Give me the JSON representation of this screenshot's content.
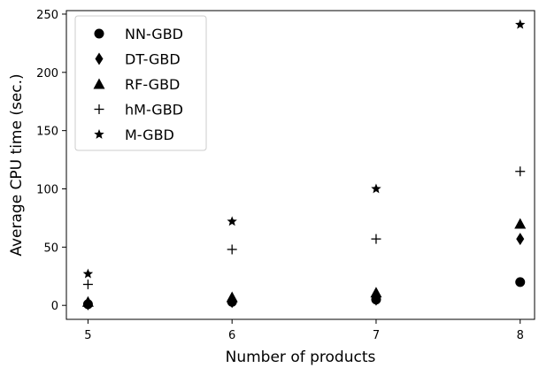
{
  "chart_data": {
    "type": "scatter",
    "xlabel": "Number of products",
    "ylabel": "Average CPU time (sec.)",
    "x": [
      5,
      6,
      7,
      8
    ],
    "xticks": [
      5,
      6,
      7,
      8
    ],
    "yticks": [
      0,
      50,
      100,
      150,
      200,
      250
    ],
    "xlim": [
      4.85,
      8.1
    ],
    "ylim": [
      -12,
      253
    ],
    "grid": false,
    "legend_position": "top-left",
    "series": [
      {
        "name": "NN-GBD",
        "marker": "circle",
        "values": [
          1,
          3,
          5,
          20
        ]
      },
      {
        "name": "DT-GBD",
        "marker": "thin-diamond",
        "values": [
          1,
          3,
          5,
          57
        ]
      },
      {
        "name": "RF-GBD",
        "marker": "triangle",
        "values": [
          3,
          7,
          11,
          70
        ]
      },
      {
        "name": "hM-GBD",
        "marker": "plus",
        "values": [
          18,
          48,
          57,
          115
        ]
      },
      {
        "name": "M-GBD",
        "marker": "star",
        "values": [
          27,
          72,
          100,
          241
        ]
      }
    ]
  }
}
